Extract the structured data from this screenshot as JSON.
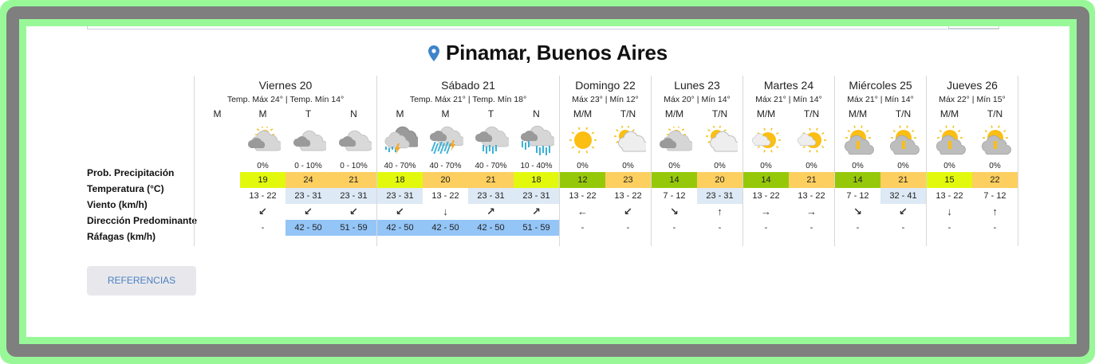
{
  "location": {
    "title": "Pinamar, Buenos Aires",
    "icon": "map-pin-icon",
    "icon_color": "#3f84c8"
  },
  "row_labels": [
    "Prob. Precipitación",
    "Temperatura (°C)",
    "Viento (km/h)",
    "Dirección Predominante",
    "Ráfagas (km/h)"
  ],
  "colors": {
    "temp_yellow": "#e2f90e",
    "temp_orange": "#fdcf5f",
    "temp_green": "#96c80a",
    "wind_light": "#dde9f5",
    "gust_blue": "#94c5f7",
    "border": "#d8d8d8",
    "button_bg": "#e8e8ec",
    "button_text": "#4a7fc0"
  },
  "days": [
    {
      "name": "Viernes 20",
      "temps": "Temp. Máx 24° | Temp. Mín 14°",
      "periods": [
        {
          "label": "M",
          "icon": "",
          "prob": "",
          "temp": "",
          "temp_color": "",
          "wind": "",
          "wind_color": "",
          "dir": "",
          "gust": "",
          "gust_color": ""
        },
        {
          "label": "M",
          "icon": "partly-cloudy-sun",
          "prob": "0%",
          "temp": "19",
          "temp_color": "#e2f90e",
          "wind": "13 - 22",
          "wind_color": "",
          "dir": "↙",
          "gust": "-",
          "gust_color": ""
        },
        {
          "label": "T",
          "icon": "cloudy",
          "prob": "0 - 10%",
          "temp": "24",
          "temp_color": "#fdcf5f",
          "wind": "23 - 31",
          "wind_color": "#dde9f5",
          "dir": "↙",
          "gust": "42 - 50",
          "gust_color": "#94c5f7"
        },
        {
          "label": "N",
          "icon": "cloudy",
          "prob": "0 - 10%",
          "temp": "21",
          "temp_color": "#fdcf5f",
          "wind": "23 - 31",
          "wind_color": "#dde9f5",
          "dir": "↙",
          "gust": "51 - 59",
          "gust_color": "#94c5f7"
        }
      ]
    },
    {
      "name": "Sábado 21",
      "temps": "Temp. Máx 21° | Temp. Mín 18°",
      "periods": [
        {
          "label": "M",
          "icon": "storm-light",
          "prob": "40 - 70%",
          "temp": "18",
          "temp_color": "#e2f90e",
          "wind": "23 - 31",
          "wind_color": "#dde9f5",
          "dir": "↙",
          "gust": "42 - 50",
          "gust_color": "#94c5f7"
        },
        {
          "label": "M",
          "icon": "storm-heavy",
          "prob": "40 - 70%",
          "temp": "20",
          "temp_color": "#fdcf5f",
          "wind": "13 - 22",
          "wind_color": "",
          "dir": "↓",
          "gust": "42 - 50",
          "gust_color": "#94c5f7"
        },
        {
          "label": "T",
          "icon": "rain",
          "prob": "40 - 70%",
          "temp": "21",
          "temp_color": "#fdcf5f",
          "wind": "23 - 31",
          "wind_color": "#dde9f5",
          "dir": "↗",
          "gust": "42 - 50",
          "gust_color": "#94c5f7"
        },
        {
          "label": "N",
          "icon": "rain-heavy",
          "prob": "10 - 40%",
          "temp": "18",
          "temp_color": "#e2f90e",
          "wind": "23 - 31",
          "wind_color": "#dde9f5",
          "dir": "↗",
          "gust": "51 - 59",
          "gust_color": "#94c5f7"
        }
      ]
    },
    {
      "name": "Domingo 22",
      "temps": "Máx 23° | Mín 12°",
      "periods": [
        {
          "label": "M/M",
          "icon": "sunny",
          "prob": "0%",
          "temp": "12",
          "temp_color": "#96c80a",
          "wind": "13 - 22",
          "wind_color": "",
          "dir": "←",
          "gust": "-",
          "gust_color": ""
        },
        {
          "label": "T/N",
          "icon": "sun-behind-cloud",
          "prob": "0%",
          "temp": "23",
          "temp_color": "#fdcf5f",
          "wind": "13 - 22",
          "wind_color": "",
          "dir": "↙",
          "gust": "-",
          "gust_color": ""
        }
      ]
    },
    {
      "name": "Lunes 23",
      "temps": "Máx 20° | Mín 14°",
      "periods": [
        {
          "label": "M/M",
          "icon": "partly-cloudy-sun",
          "prob": "0%",
          "temp": "14",
          "temp_color": "#96c80a",
          "wind": "7 - 12",
          "wind_color": "",
          "dir": "↘",
          "gust": "-",
          "gust_color": ""
        },
        {
          "label": "T/N",
          "icon": "sun-behind-cloud",
          "prob": "0%",
          "temp": "20",
          "temp_color": "#fdcf5f",
          "wind": "23 - 31",
          "wind_color": "#dde9f5",
          "dir": "↑",
          "gust": "-",
          "gust_color": ""
        }
      ]
    },
    {
      "name": "Martes 24",
      "temps": "Máx 21° | Mín 14°",
      "periods": [
        {
          "label": "M/M",
          "icon": "sun-small-cloud",
          "prob": "0%",
          "temp": "14",
          "temp_color": "#96c80a",
          "wind": "13 - 22",
          "wind_color": "",
          "dir": "→",
          "gust": "-",
          "gust_color": ""
        },
        {
          "label": "T/N",
          "icon": "sun-small-cloud",
          "prob": "0%",
          "temp": "21",
          "temp_color": "#fdcf5f",
          "wind": "13 - 22",
          "wind_color": "",
          "dir": "→",
          "gust": "-",
          "gust_color": ""
        }
      ]
    },
    {
      "name": "Miércoles 25",
      "temps": "Máx 21° | Mín 14°",
      "periods": [
        {
          "label": "M/M",
          "icon": "sun-over-cloud",
          "prob": "0%",
          "temp": "14",
          "temp_color": "#96c80a",
          "wind": "7 - 12",
          "wind_color": "",
          "dir": "↘",
          "gust": "-",
          "gust_color": ""
        },
        {
          "label": "T/N",
          "icon": "sun-over-cloud",
          "prob": "0%",
          "temp": "21",
          "temp_color": "#fdcf5f",
          "wind": "32 - 41",
          "wind_color": "#dde9f5",
          "dir": "↙",
          "gust": "-",
          "gust_color": ""
        }
      ]
    },
    {
      "name": "Jueves 26",
      "temps": "Máx 22° | Mín 15°",
      "periods": [
        {
          "label": "M/M",
          "icon": "sun-over-cloud",
          "prob": "0%",
          "temp": "15",
          "temp_color": "#e2f90e",
          "wind": "13 - 22",
          "wind_color": "",
          "dir": "↓",
          "gust": "-",
          "gust_color": ""
        },
        {
          "label": "T/N",
          "icon": "sun-over-cloud",
          "prob": "0%",
          "temp": "22",
          "temp_color": "#fdcf5f",
          "wind": "7 - 12",
          "wind_color": "",
          "dir": "↑",
          "gust": "-",
          "gust_color": ""
        }
      ]
    }
  ],
  "references_button": {
    "label": "REFERENCIAS"
  }
}
